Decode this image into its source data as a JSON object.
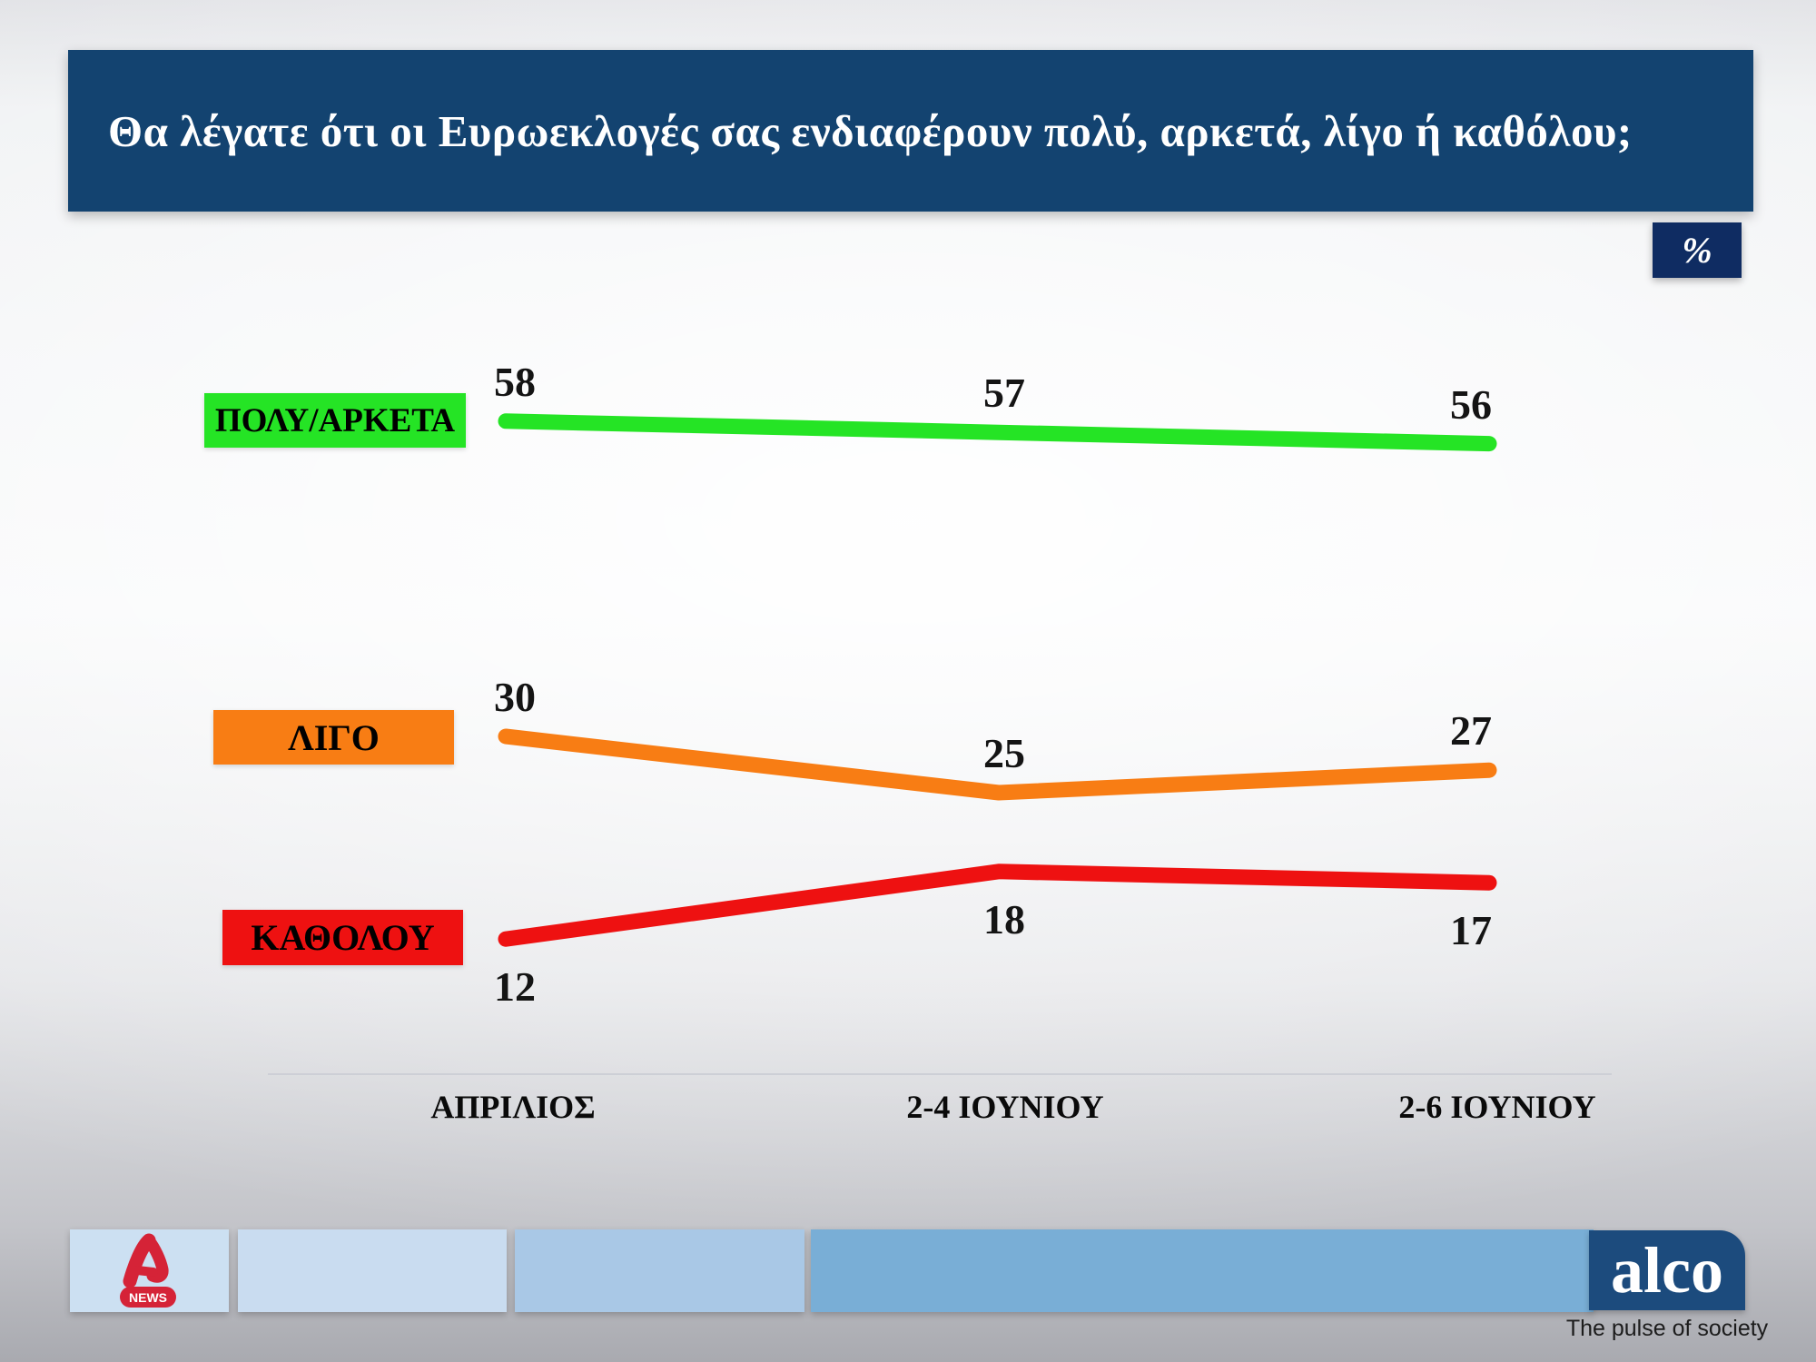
{
  "title": "Θα λέγατε ότι οι Ευρωεκλογές σας ενδιαφέρουν πολύ, αρκετά, λίγο ή καθόλου;",
  "unit_badge": "%",
  "chart_data": {
    "type": "line",
    "categories": [
      "ΑΠΡΙΛΙΟΣ",
      "2-4 ΙΟΥΝΙΟΥ",
      "2-6 ΙΟΥΝΙΟΥ"
    ],
    "series": [
      {
        "name": "ΠΟΛΥ/ΑΡΚΕΤΑ",
        "values": [
          58,
          57,
          56
        ],
        "color": "#25e425",
        "label_position": "above"
      },
      {
        "name": "ΛΙΓΟ",
        "values": [
          30,
          25,
          27
        ],
        "color": "#f87d14",
        "label_position": "above"
      },
      {
        "name": "ΚΑΘΟΛΟΥ",
        "values": [
          12,
          18,
          17
        ],
        "color": "#ee1111",
        "label_position": "below"
      }
    ],
    "ylabel": "%",
    "ylim": [
      0,
      100
    ],
    "grid": false,
    "legend_position": "left",
    "data_labels": true
  },
  "colors": {
    "banner_bg": "#134370",
    "badge_bg": "#0f2c62",
    "footer_box1": "#cce0f2",
    "footer_box2": "#c9dcf0",
    "footer_box3": "#a9c8e6",
    "footer_box4": "#79aed6",
    "alco_bg": "#1c4b7d",
    "alpha_red": "#d52337"
  },
  "footer": {
    "alpha_news_label": "NEWS",
    "alco_name": "alco",
    "alco_tagline": "The pulse of society"
  }
}
